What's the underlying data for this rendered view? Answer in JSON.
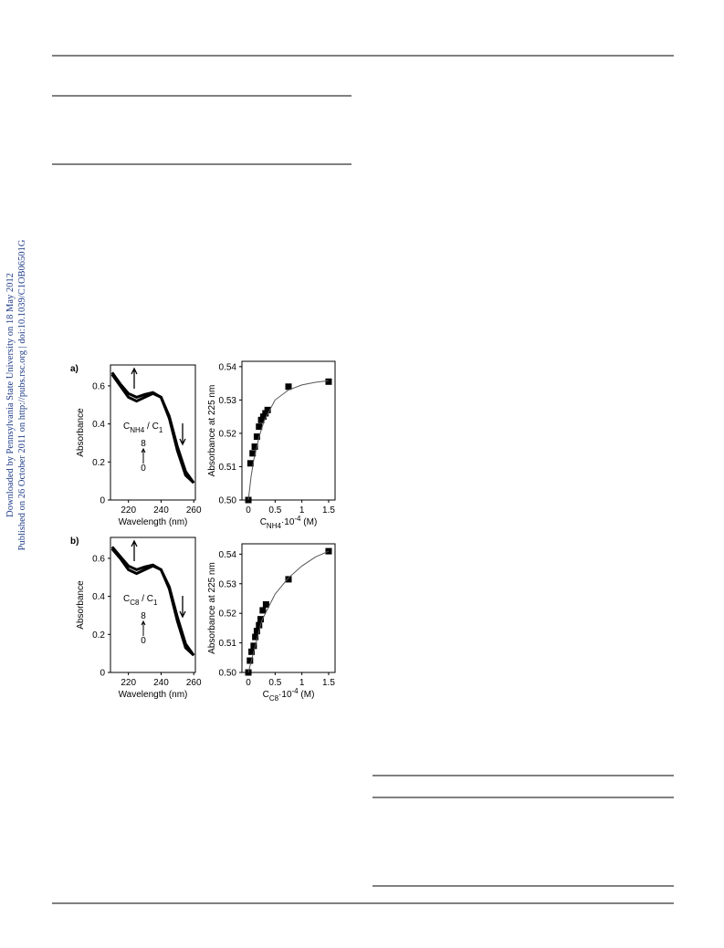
{
  "watermark": [
    "Downloaded by Pennsylvania State University on 18 May 2012",
    "Published on 26 October 2011 on http://pubs.rsc.org | doi:10.1039/C1OB06501G"
  ],
  "chart_data": [
    {
      "type": "line",
      "panel_label": "a)",
      "xlabel": "Wavelength (nm)",
      "ylabel": "Absorbance",
      "x": [
        210,
        215,
        220,
        225,
        230,
        235,
        240,
        245,
        250,
        255,
        260
      ],
      "series": [
        {
          "color": "#000000",
          "values": [
            0.66,
            0.6,
            0.54,
            0.52,
            0.54,
            0.56,
            0.54,
            0.44,
            0.28,
            0.15,
            0.09
          ]
        },
        {
          "color": "#000000",
          "values": [
            0.67,
            0.61,
            0.56,
            0.54,
            0.555,
            0.565,
            0.54,
            0.43,
            0.26,
            0.13,
            0.09
          ]
        }
      ],
      "legend_title_parts": [
        {
          "text": "C"
        },
        {
          "text": "NH4",
          "shift": "sub"
        },
        {
          "text": " / C"
        },
        {
          "text": "1",
          "shift": "sub"
        }
      ],
      "range_labels": [
        "8",
        "0"
      ],
      "xlim": [
        209,
        261
      ],
      "ylim": [
        0,
        0.71
      ],
      "xticks": [
        220,
        240,
        260
      ],
      "yticks": [
        0,
        0.2,
        0.4,
        0.6
      ]
    },
    {
      "type": "scatter",
      "ylabel": "Absorbance at 225 nm",
      "xlabel_parts": [
        {
          "text": "C"
        },
        {
          "text": "NH4",
          "shift": "sub"
        },
        {
          "text": "·10"
        },
        {
          "text": "-4",
          "shift": "super"
        },
        {
          "text": " (M)"
        }
      ],
      "series": [
        {
          "mode": "markers",
          "color": "#000000",
          "x": [
            0,
            0.04,
            0.08,
            0.12,
            0.16,
            0.2,
            0.24,
            0.28,
            0.32,
            0.36,
            0.75,
            1.5
          ],
          "values": [
            0.5,
            0.511,
            0.514,
            0.516,
            0.519,
            0.522,
            0.524,
            0.525,
            0.526,
            0.527,
            0.534,
            0.5355
          ]
        },
        {
          "mode": "line",
          "color": "#555555",
          "x": [
            0,
            0.05,
            0.1,
            0.2,
            0.3,
            0.5,
            0.75,
            1,
            1.25,
            1.5
          ],
          "values": [
            0.5,
            0.507,
            0.512,
            0.519,
            0.524,
            0.53,
            0.533,
            0.5345,
            0.5353,
            0.5358
          ]
        }
      ],
      "xlim": [
        -0.12,
        1.62
      ],
      "ylim": [
        0.5,
        0.5416
      ],
      "xticks": [
        0,
        0.5,
        1,
        1.5
      ],
      "yticks": [
        {
          "value": 0.5,
          "label": "0.50"
        },
        0.51,
        0.52,
        0.53,
        {
          "value": 0.54,
          "label": "0.54"
        }
      ]
    },
    {
      "type": "line",
      "panel_label": "b)",
      "xlabel": "Wavelength (nm)",
      "ylabel": "Absorbance",
      "x": [
        210,
        215,
        220,
        225,
        230,
        235,
        240,
        245,
        250,
        255,
        260
      ],
      "series": [
        {
          "color": "#000000",
          "values": [
            0.65,
            0.6,
            0.54,
            0.52,
            0.54,
            0.56,
            0.54,
            0.45,
            0.29,
            0.15,
            0.09
          ]
        },
        {
          "color": "#000000",
          "values": [
            0.66,
            0.61,
            0.56,
            0.54,
            0.555,
            0.565,
            0.54,
            0.44,
            0.27,
            0.13,
            0.09
          ]
        }
      ],
      "legend_title_parts": [
        {
          "text": "C"
        },
        {
          "text": "C8",
          "shift": "sub"
        },
        {
          "text": " / C"
        },
        {
          "text": "1",
          "shift": "sub"
        }
      ],
      "range_labels": [
        "8",
        "0"
      ],
      "xlim": [
        209,
        261
      ],
      "ylim": [
        0,
        0.71
      ],
      "xticks": [
        220,
        240,
        260
      ],
      "yticks": [
        0,
        0.2,
        0.4,
        0.6
      ]
    },
    {
      "type": "scatter",
      "ylabel": "Absorbance at 225 nm",
      "xlabel_parts": [
        {
          "text": "C"
        },
        {
          "text": "C8",
          "shift": "sub"
        },
        {
          "text": "·10"
        },
        {
          "text": "-4",
          "shift": "super"
        },
        {
          "text": " (M)"
        }
      ],
      "series": [
        {
          "mode": "markers",
          "color": "#000000",
          "x": [
            0,
            0.03,
            0.06,
            0.1,
            0.13,
            0.16,
            0.2,
            0.23,
            0.27,
            0.33,
            0.75,
            1.5
          ],
          "values": [
            0.5,
            0.504,
            0.507,
            0.509,
            0.512,
            0.514,
            0.516,
            0.518,
            0.521,
            0.523,
            0.5315,
            0.541
          ]
        },
        {
          "mode": "line",
          "color": "#555555",
          "x": [
            0,
            0.25,
            0.5,
            0.75,
            1,
            1.25,
            1.5
          ],
          "values": [
            0.5,
            0.5175,
            0.5265,
            0.532,
            0.536,
            0.539,
            0.541
          ]
        }
      ],
      "xlim": [
        -0.12,
        1.62
      ],
      "ylim": [
        0.5,
        0.5435
      ],
      "xticks": [
        0,
        0.5,
        1,
        1.5
      ],
      "yticks": [
        {
          "value": 0.5,
          "label": "0.50"
        },
        0.51,
        0.52,
        0.53,
        {
          "value": 0.54,
          "label": "0.54"
        }
      ]
    }
  ]
}
